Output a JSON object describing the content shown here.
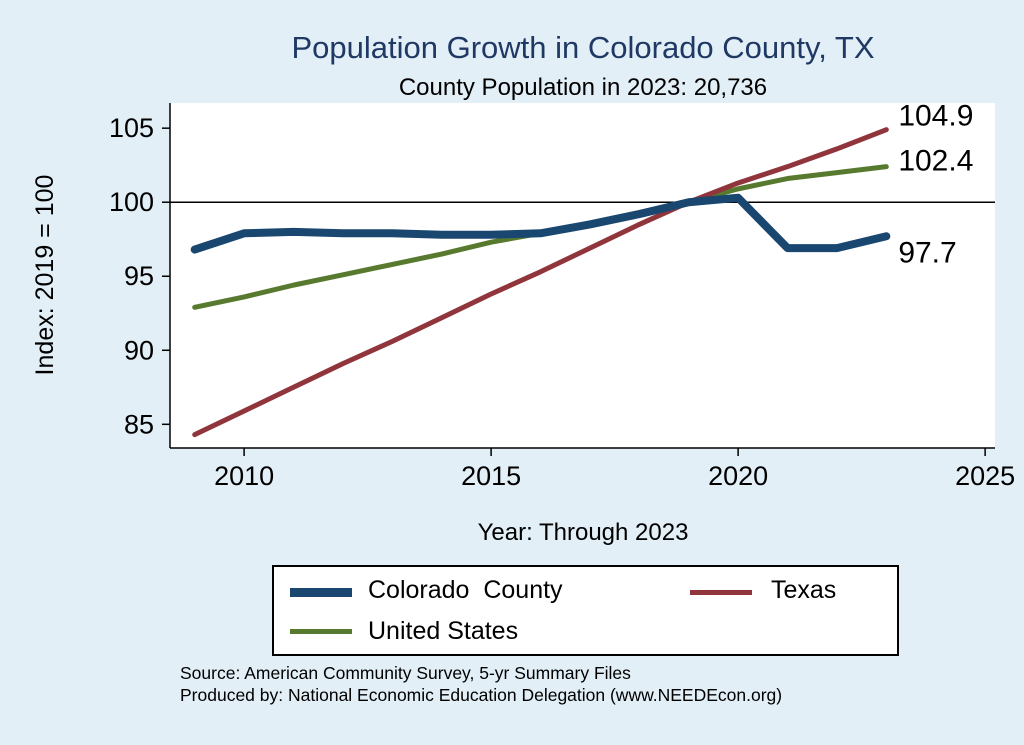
{
  "title": "Population Growth in Colorado County, TX",
  "subtitle": "County Population in 2023: 20,736",
  "colors": {
    "background": "#e2eff7",
    "title": "#1f3864",
    "axis": "#000000",
    "plot_background": "#ffffff"
  },
  "chart_data": {
    "type": "line",
    "title": "Population Growth in Colorado County, TX",
    "subtitle": "County Population in 2023: 20,736",
    "xlabel": "Year: Through 2023",
    "ylabel": "Index: 2019 = 100",
    "x": [
      2009,
      2010,
      2011,
      2012,
      2013,
      2014,
      2015,
      2016,
      2017,
      2018,
      2019,
      2020,
      2021,
      2022,
      2023
    ],
    "series": [
      {
        "name": "Colorado  County",
        "color": "#1a476f",
        "line_width": 8,
        "values": [
          96.8,
          97.9,
          98.0,
          97.9,
          97.9,
          97.8,
          97.8,
          97.9,
          98.5,
          99.2,
          100.0,
          100.3,
          96.9,
          96.9,
          97.7
        ],
        "end_label": "97.7",
        "end_label_dy": 16
      },
      {
        "name": "Texas",
        "color": "#90353b",
        "line_width": 5,
        "values": [
          84.3,
          85.9,
          87.5,
          89.1,
          90.6,
          92.2,
          93.8,
          95.3,
          96.9,
          98.5,
          100.0,
          101.3,
          102.4,
          103.6,
          104.9
        ],
        "end_label": "104.9",
        "end_label_dy": -14
      },
      {
        "name": "United States",
        "color": "#587a2e",
        "line_width": 5,
        "values": [
          92.9,
          93.6,
          94.4,
          95.1,
          95.8,
          96.5,
          97.3,
          97.9,
          98.6,
          99.3,
          100.0,
          100.9,
          101.6,
          102.0,
          102.4
        ],
        "end_label": "102.4",
        "end_label_dy": -6
      }
    ],
    "draw_order": [
      2,
      1,
      0
    ],
    "xticks": [
      2010,
      2015,
      2020,
      2025
    ],
    "yticks": [
      85,
      90,
      95,
      100,
      105
    ],
    "xlim": [
      2008.5,
      2025.2
    ],
    "ylim": [
      83.4,
      106.7
    ],
    "ref_line": 100,
    "grid": false,
    "legend_position": "bottom"
  },
  "source_line1": "Source: American Community Survey, 5-yr Summary Files",
  "source_line2": "Produced by: National Economic Education Delegation (www.NEEDEcon.org)"
}
